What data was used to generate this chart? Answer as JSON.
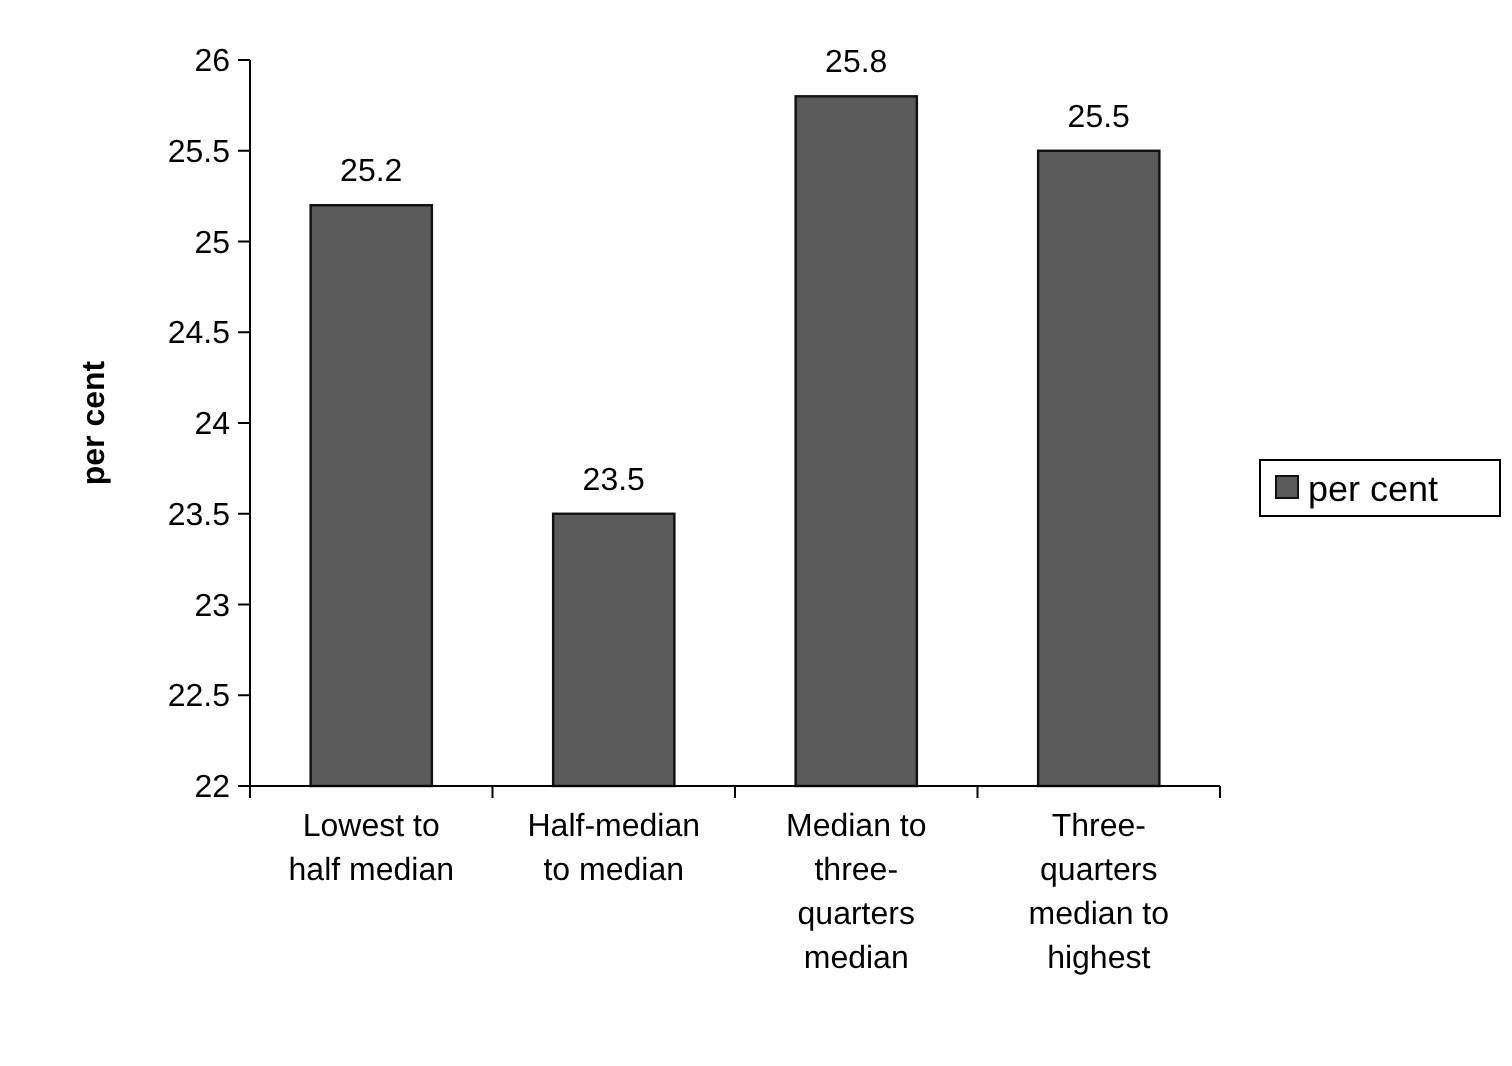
{
  "chart_data": {
    "type": "bar",
    "ylabel": "per cent",
    "categories": [
      "Lowest to half median",
      "Half-median to median",
      "Median to three-quarters median",
      "Three-quarters median to highest"
    ],
    "series": [
      {
        "name": "per cent",
        "color": "#5a5a5a",
        "values": [
          25.2,
          23.5,
          25.8,
          25.5
        ]
      }
    ],
    "ylim": [
      22,
      26
    ],
    "yticks": [
      22,
      22.5,
      23,
      23.5,
      24,
      24.5,
      25,
      25.5,
      26
    ],
    "data_labels": true,
    "grid": false,
    "legend": "right"
  }
}
